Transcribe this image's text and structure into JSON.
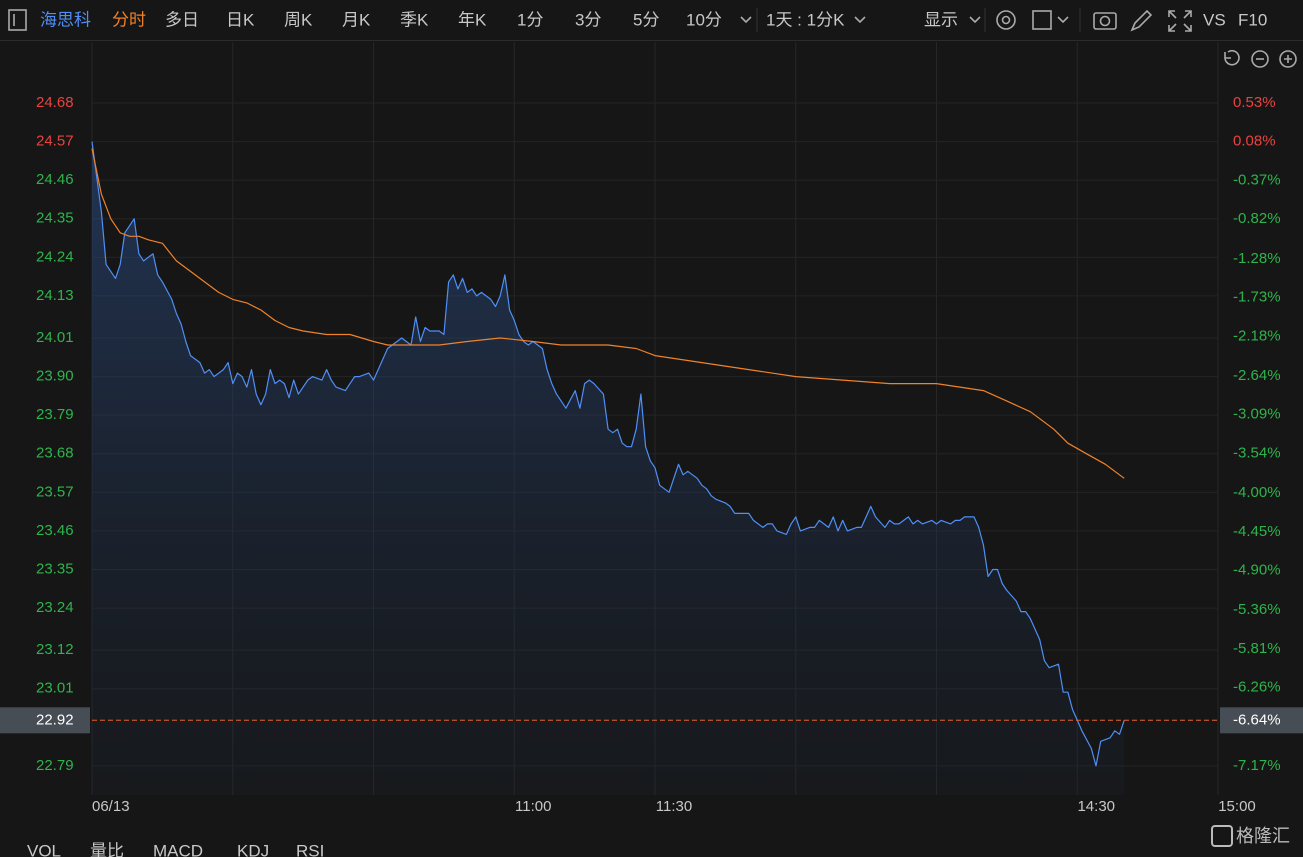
{
  "toolbar": {
    "symbol": "海思科",
    "tabs": [
      "分时",
      "多日",
      "日K",
      "周K",
      "月K",
      "季K",
      "年K",
      "1分",
      "3分",
      "5分",
      "10分"
    ],
    "period": "1天 : 1分K",
    "display": "显示",
    "extras": [
      "VS",
      "F10"
    ]
  },
  "bottom_tabs": [
    "VOL",
    "量比",
    "MACD",
    "KDJ",
    "RSI"
  ],
  "watermark": "格隆汇",
  "chart_data": {
    "type": "line",
    "xlim": [
      0,
      240
    ],
    "xticks": [
      {
        "value": 0,
        "label": "06/13"
      },
      {
        "value": 30,
        "label": null
      },
      {
        "value": 60,
        "label": null
      },
      {
        "value": 90,
        "label": "11:00"
      },
      {
        "value": 120,
        "label": "11:30"
      },
      {
        "value": 150,
        "label": null
      },
      {
        "value": 180,
        "label": null
      },
      {
        "value": 210,
        "label": "14:30"
      },
      {
        "value": 240,
        "label": "15:00"
      }
    ],
    "ylim": [
      22.707,
      24.797
    ],
    "yticks": [
      24.68,
      24.57,
      24.46,
      24.35,
      24.24,
      24.13,
      24.01,
      {
        "value": 23.9,
        "label": "23.90"
      },
      23.79,
      23.68,
      23.57,
      23.46,
      23.35,
      23.24,
      23.12,
      23.01,
      22.79
    ],
    "y2lim": [
      -7.507,
      1.006
    ],
    "y2ticks": [
      {
        "value": 0.53,
        "label": "0.53%"
      },
      {
        "value": 0.08,
        "label": "0.08%"
      },
      {
        "value": -0.37,
        "label": "-0.37%"
      },
      {
        "value": -0.82,
        "label": "-0.82%"
      },
      {
        "value": -1.28,
        "label": "-1.28%"
      },
      {
        "value": -1.73,
        "label": "-1.73%"
      },
      {
        "value": -2.18,
        "label": "-2.18%"
      },
      {
        "value": -2.64,
        "label": "-2.64%"
      },
      {
        "value": -3.09,
        "label": "-3.09%"
      },
      {
        "value": -3.54,
        "label": "-3.54%"
      },
      {
        "value": -4,
        "label": "-4.00%"
      },
      {
        "value": -4.45,
        "label": "-4.45%"
      },
      {
        "value": -4.9,
        "label": "-4.90%"
      },
      {
        "value": -5.36,
        "label": "-5.36%"
      },
      {
        "value": -5.81,
        "label": "-5.81%"
      },
      {
        "value": -6.26,
        "label": "-6.26%"
      },
      {
        "value": -7.17,
        "label": "-7.17%"
      }
    ],
    "grid": true,
    "up_color": "#e8433f",
    "down_color": "#2fb34c",
    "last_price": 22.92,
    "last_change": {
      "value": -6.64,
      "label": "-6.64%"
    },
    "series": [
      {
        "color": "#4f8ff7",
        "area": true,
        "x": [
          0,
          1,
          2,
          3,
          5,
          6,
          7,
          8,
          9,
          10,
          11,
          13,
          14,
          15,
          17,
          18,
          19,
          20,
          21,
          23,
          24,
          25,
          26,
          28,
          29,
          30,
          31,
          32,
          33,
          34,
          35,
          36,
          37,
          38,
          39,
          40,
          41,
          42,
          43,
          44,
          46,
          47,
          49,
          50,
          51,
          52,
          54,
          55,
          56,
          57,
          59,
          60,
          61,
          63,
          64,
          65,
          66,
          68,
          69,
          70,
          71,
          72,
          74,
          75,
          76,
          77,
          78,
          79,
          80,
          81,
          82,
          83,
          85,
          86,
          87,
          88,
          89,
          90,
          91,
          92,
          93,
          94,
          96,
          97,
          98,
          99,
          100,
          101,
          103,
          104,
          105,
          106,
          107,
          109,
          110,
          111,
          112,
          113,
          114,
          115,
          116,
          117,
          118,
          119,
          120,
          121,
          123,
          124,
          125,
          126,
          127,
          129,
          130,
          131,
          132,
          133,
          135,
          136,
          137,
          139,
          140,
          141,
          143,
          144,
          145,
          146,
          148,
          149,
          150,
          151,
          153,
          154,
          155,
          157,
          158,
          159,
          160,
          161,
          163,
          164,
          165,
          166,
          167,
          169,
          170,
          171,
          172,
          174,
          175,
          176,
          177,
          179,
          180,
          181,
          183,
          184,
          185,
          186,
          188,
          189,
          190,
          191,
          192,
          193,
          194,
          195,
          197,
          198,
          199,
          200,
          202,
          203,
          204,
          206,
          207,
          208,
          209,
          210,
          211,
          213,
          214,
          215,
          217,
          218,
          219,
          220
        ],
        "values": [
          24.57,
          24.47,
          24.37,
          24.22,
          24.18,
          24.22,
          24.31,
          24.33,
          24.35,
          24.25,
          24.23,
          24.25,
          24.19,
          24.17,
          24.12,
          24.08,
          24.05,
          24.0,
          23.96,
          23.94,
          23.91,
          23.92,
          23.9,
          23.92,
          23.94,
          23.88,
          23.91,
          23.9,
          23.87,
          23.92,
          23.85,
          23.82,
          23.85,
          23.92,
          23.88,
          23.89,
          23.88,
          23.84,
          23.89,
          23.85,
          23.89,
          23.9,
          23.89,
          23.92,
          23.89,
          23.87,
          23.86,
          23.88,
          23.9,
          23.9,
          23.91,
          23.89,
          23.92,
          23.98,
          23.99,
          24.0,
          24.01,
          23.99,
          24.07,
          24.0,
          24.04,
          24.03,
          24.03,
          24.02,
          24.17,
          24.19,
          24.15,
          24.18,
          24.14,
          24.15,
          24.13,
          24.14,
          24.12,
          24.1,
          24.13,
          24.19,
          24.09,
          24.06,
          24.02,
          24.0,
          23.99,
          24.0,
          23.98,
          23.92,
          23.88,
          23.85,
          23.83,
          23.81,
          23.86,
          23.81,
          23.88,
          23.89,
          23.88,
          23.85,
          23.75,
          23.74,
          23.75,
          23.71,
          23.7,
          23.7,
          23.75,
          23.85,
          23.7,
          23.66,
          23.64,
          23.59,
          23.57,
          23.61,
          23.65,
          23.62,
          23.63,
          23.61,
          23.59,
          23.58,
          23.56,
          23.55,
          23.54,
          23.53,
          23.51,
          23.51,
          23.51,
          23.49,
          23.47,
          23.48,
          23.48,
          23.46,
          23.45,
          23.48,
          23.5,
          23.46,
          23.47,
          23.47,
          23.49,
          23.47,
          23.5,
          23.46,
          23.49,
          23.46,
          23.47,
          23.47,
          23.5,
          23.53,
          23.5,
          23.47,
          23.49,
          23.48,
          23.48,
          23.5,
          23.48,
          23.49,
          23.48,
          23.49,
          23.48,
          23.49,
          23.48,
          23.49,
          23.49,
          23.5,
          23.5,
          23.47,
          23.42,
          23.33,
          23.35,
          23.35,
          23.31,
          23.29,
          23.26,
          23.23,
          23.23,
          23.21,
          23.15,
          23.09,
          23.07,
          23.08,
          23.0,
          23.0,
          22.95,
          22.92,
          22.89,
          22.84,
          22.79,
          22.86,
          22.87,
          22.89,
          22.88,
          22.92
        ]
      },
      {
        "color": "#f0822a",
        "area": false,
        "x": [
          0,
          2,
          4,
          6,
          8,
          10,
          12,
          15,
          18,
          21,
          24,
          27,
          30,
          33,
          36,
          39,
          42,
          45,
          50,
          55,
          60,
          63,
          68,
          74,
          80,
          87,
          94,
          100,
          110,
          116,
          120,
          125,
          130,
          140,
          150,
          160,
          170,
          180,
          190,
          195,
          200,
          205,
          208,
          212,
          216,
          220
        ],
        "values": [
          24.55,
          24.42,
          24.35,
          24.31,
          24.3,
          24.3,
          24.29,
          24.28,
          24.23,
          24.2,
          24.17,
          24.14,
          24.12,
          24.11,
          24.09,
          24.06,
          24.04,
          24.03,
          24.02,
          24.02,
          24.0,
          23.99,
          23.99,
          23.99,
          24.0,
          24.01,
          24.0,
          23.99,
          23.99,
          23.98,
          23.96,
          23.95,
          23.94,
          23.92,
          23.9,
          23.89,
          23.88,
          23.88,
          23.86,
          23.83,
          23.8,
          23.75,
          23.71,
          23.68,
          23.65,
          23.61
        ]
      }
    ]
  }
}
